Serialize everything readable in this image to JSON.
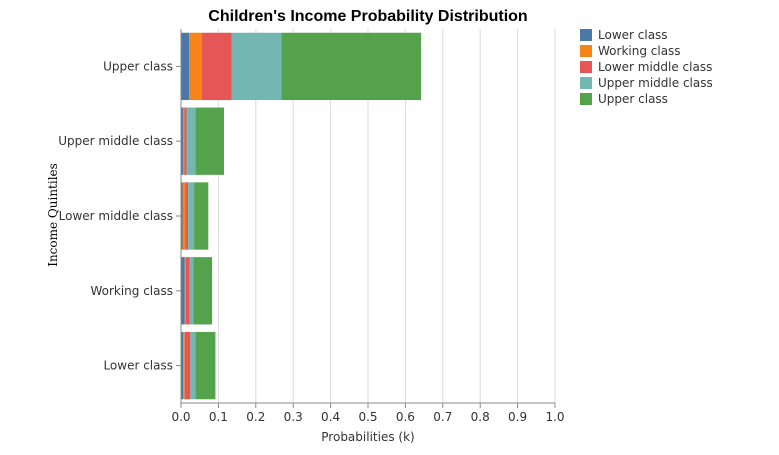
{
  "chart_data": {
    "type": "bar",
    "orientation": "horizontal",
    "stacked": true,
    "title": "Children's Income Probability Distribution",
    "xlabel": "Probabilities (k)",
    "ylabel": "Income Quintiles",
    "xlim": [
      0,
      1.0
    ],
    "xticks": [
      "0.0",
      "0.1",
      "0.2",
      "0.3",
      "0.4",
      "0.5",
      "0.6",
      "0.7",
      "0.8",
      "0.9",
      "1.0"
    ],
    "categories": [
      "Upper class",
      "Upper middle class",
      "Lower middle class",
      "Working class",
      "Lower class"
    ],
    "legend_position": "top-right",
    "grid": true,
    "series": [
      {
        "name": "Lower class",
        "color": "#4c78a8",
        "values": [
          0.022,
          0.006,
          0.004,
          0.01,
          0.006
        ]
      },
      {
        "name": "Working class",
        "color": "#f58518",
        "values": [
          0.034,
          0.003,
          0.008,
          0.003,
          0.004
        ]
      },
      {
        "name": "Lower middle class",
        "color": "#e45756",
        "values": [
          0.079,
          0.006,
          0.007,
          0.01,
          0.015
        ]
      },
      {
        "name": "Upper middle class",
        "color": "#72b7b2",
        "values": [
          0.133,
          0.024,
          0.016,
          0.01,
          0.014
        ]
      },
      {
        "name": "Upper class",
        "color": "#54a24b",
        "values": [
          0.374,
          0.076,
          0.038,
          0.05,
          0.053
        ]
      }
    ]
  }
}
